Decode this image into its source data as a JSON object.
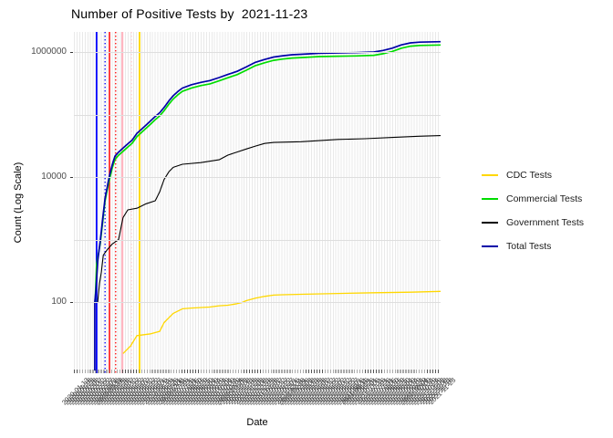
{
  "chart_data": {
    "type": "line",
    "title": "Number of Positive Tests by  2021-11-23",
    "xlabel": "Date",
    "ylabel": "Count (Log Scale)",
    "y_scale": "log10",
    "ylim": [
      8,
      2100000
    ],
    "grid": true,
    "y_ticks": [
      {
        "value": 1000000,
        "label": "1000000"
      },
      {
        "value": 10000,
        "label": "10000"
      },
      {
        "value": 100,
        "label": "100"
      }
    ],
    "y_gridline_values": [
      100,
      1000,
      10000,
      100000,
      1000000
    ],
    "x_ticks": {
      "start_date": "2020-01-13",
      "end_date": "2021-11-23",
      "step_days": 5,
      "note": "rotated 45-degree date labels, heavily overlapping (illegible in source)"
    },
    "legend_position": "right",
    "series": [
      {
        "name": "CDC Tests",
        "color": "#FFD700",
        "points": [
          [
            0.134,
            15
          ],
          [
            0.155,
            20
          ],
          [
            0.172,
            29
          ],
          [
            0.21,
            31
          ],
          [
            0.234,
            34
          ],
          [
            0.246,
            47
          ],
          [
            0.259,
            56
          ],
          [
            0.271,
            66
          ],
          [
            0.284,
            72
          ],
          [
            0.296,
            78
          ],
          [
            0.32,
            80
          ],
          [
            0.37,
            83
          ],
          [
            0.396,
            87
          ],
          [
            0.42,
            89
          ],
          [
            0.445,
            94
          ],
          [
            0.458,
            98
          ],
          [
            0.47,
            105
          ],
          [
            0.495,
            115
          ],
          [
            0.52,
            123
          ],
          [
            0.545,
            129
          ],
          [
            0.57,
            131
          ],
          [
            0.62,
            133
          ],
          [
            0.72,
            137
          ],
          [
            0.82,
            141
          ],
          [
            0.92,
            144
          ],
          [
            1,
            148
          ]
        ]
      },
      {
        "name": "Commercial Tests",
        "color": "#00DD00",
        "points": [
          [
            0.058,
            100
          ],
          [
            0.062,
            400
          ],
          [
            0.072,
            870
          ],
          [
            0.08,
            2300
          ],
          [
            0.085,
            4170
          ],
          [
            0.092,
            6700
          ],
          [
            0.097,
            9120
          ],
          [
            0.105,
            14200
          ],
          [
            0.112,
            19000
          ],
          [
            0.122,
            22300
          ],
          [
            0.134,
            25800
          ],
          [
            0.147,
            30200
          ],
          [
            0.159,
            34700
          ],
          [
            0.172,
            44300
          ],
          [
            0.184,
            51500
          ],
          [
            0.197,
            60300
          ],
          [
            0.209,
            70000
          ],
          [
            0.221,
            81600
          ],
          [
            0.234,
            95000
          ],
          [
            0.246,
            115000
          ],
          [
            0.259,
            146000
          ],
          [
            0.271,
            177000
          ],
          [
            0.284,
            208000
          ],
          [
            0.296,
            235000
          ],
          [
            0.321,
            266000
          ],
          [
            0.346,
            290000
          ],
          [
            0.371,
            309000
          ],
          [
            0.396,
            346000
          ],
          [
            0.42,
            387000
          ],
          [
            0.445,
            434000
          ],
          [
            0.47,
            510000
          ],
          [
            0.495,
            606000
          ],
          [
            0.52,
            672000
          ],
          [
            0.545,
            737000
          ],
          [
            0.57,
            771000
          ],
          [
            0.595,
            800000
          ],
          [
            0.62,
            814000
          ],
          [
            0.669,
            846000
          ],
          [
            0.719,
            857000
          ],
          [
            0.769,
            864000
          ],
          [
            0.818,
            885000
          ],
          [
            0.843,
            939000
          ],
          [
            0.868,
            1020000
          ],
          [
            0.893,
            1150000
          ],
          [
            0.918,
            1240000
          ],
          [
            0.943,
            1275000
          ],
          [
            1,
            1295000
          ]
        ]
      },
      {
        "name": "Government Tests",
        "color": "#000000",
        "points": [
          [
            0.065,
            100
          ],
          [
            0.07,
            200
          ],
          [
            0.075,
            300
          ],
          [
            0.08,
            560
          ],
          [
            0.092,
            700
          ],
          [
            0.105,
            850
          ],
          [
            0.117,
            950
          ],
          [
            0.122,
            1000
          ],
          [
            0.134,
            2250
          ],
          [
            0.147,
            2980
          ],
          [
            0.172,
            3170
          ],
          [
            0.197,
            3730
          ],
          [
            0.222,
            4170
          ],
          [
            0.234,
            5830
          ],
          [
            0.246,
            9120
          ],
          [
            0.259,
            12100
          ],
          [
            0.271,
            14300
          ],
          [
            0.296,
            16000
          ],
          [
            0.346,
            17000
          ],
          [
            0.396,
            18900
          ],
          [
            0.42,
            22400
          ],
          [
            0.445,
            25100
          ],
          [
            0.47,
            28100
          ],
          [
            0.495,
            31300
          ],
          [
            0.52,
            34400
          ],
          [
            0.545,
            35800
          ],
          [
            0.62,
            36700
          ],
          [
            0.72,
            39900
          ],
          [
            0.794,
            41000
          ],
          [
            0.87,
            43000
          ],
          [
            0.94,
            45000
          ],
          [
            1,
            46000
          ]
        ]
      },
      {
        "name": "Total Tests",
        "color": "#0000A8",
        "points": [
          [
            0.057,
            8
          ],
          [
            0.057,
            100
          ],
          [
            0.06,
            150
          ],
          [
            0.065,
            450
          ],
          [
            0.072,
            950
          ],
          [
            0.08,
            2600
          ],
          [
            0.085,
            4600
          ],
          [
            0.092,
            7500
          ],
          [
            0.097,
            10500
          ],
          [
            0.105,
            16000
          ],
          [
            0.112,
            21500
          ],
          [
            0.122,
            25000
          ],
          [
            0.134,
            29000
          ],
          [
            0.147,
            34000
          ],
          [
            0.159,
            39000
          ],
          [
            0.172,
            50000
          ],
          [
            0.184,
            58000
          ],
          [
            0.197,
            68000
          ],
          [
            0.209,
            79000
          ],
          [
            0.221,
            92000
          ],
          [
            0.234,
            107000
          ],
          [
            0.246,
            130000
          ],
          [
            0.259,
            165000
          ],
          [
            0.271,
            200000
          ],
          [
            0.284,
            235000
          ],
          [
            0.296,
            265000
          ],
          [
            0.321,
            300000
          ],
          [
            0.346,
            327000
          ],
          [
            0.371,
            349000
          ],
          [
            0.396,
            390000
          ],
          [
            0.42,
            437000
          ],
          [
            0.445,
            490000
          ],
          [
            0.47,
            576000
          ],
          [
            0.495,
            684000
          ],
          [
            0.52,
            759000
          ],
          [
            0.545,
            832000
          ],
          [
            0.57,
            871000
          ],
          [
            0.595,
            904000
          ],
          [
            0.62,
            919000
          ],
          [
            0.669,
            955000
          ],
          [
            0.719,
            968000
          ],
          [
            0.769,
            976000
          ],
          [
            0.818,
            1000000
          ],
          [
            0.843,
            1060000
          ],
          [
            0.868,
            1150000
          ],
          [
            0.893,
            1300000
          ],
          [
            0.918,
            1400000
          ],
          [
            0.943,
            1440000
          ],
          [
            1,
            1460000
          ]
        ]
      }
    ],
    "vlines": [
      {
        "x_frac": 0.062,
        "color": "#0000FF",
        "style": "solid"
      },
      {
        "x_frac": 0.085,
        "color": "#0000FF",
        "style": "dotted"
      },
      {
        "x_frac": 0.097,
        "color": "#FF0000",
        "style": "solid"
      },
      {
        "x_frac": 0.114,
        "color": "#FF0000",
        "style": "dotted"
      },
      {
        "x_frac": 0.132,
        "color": "#FFB6C1",
        "style": "solid"
      },
      {
        "x_frac": 0.157,
        "color": "#FFC9D2",
        "style": "dotted"
      },
      {
        "x_frac": 0.179,
        "color": "#FFD700",
        "style": "solid"
      }
    ],
    "legend": {
      "entries": [
        {
          "label": "CDC Tests",
          "color": "#FFD700"
        },
        {
          "label": "Commercial Tests",
          "color": "#00DD00"
        },
        {
          "label": "Government Tests",
          "color": "#000000"
        },
        {
          "label": "Total Tests",
          "color": "#0000A8"
        }
      ]
    }
  }
}
